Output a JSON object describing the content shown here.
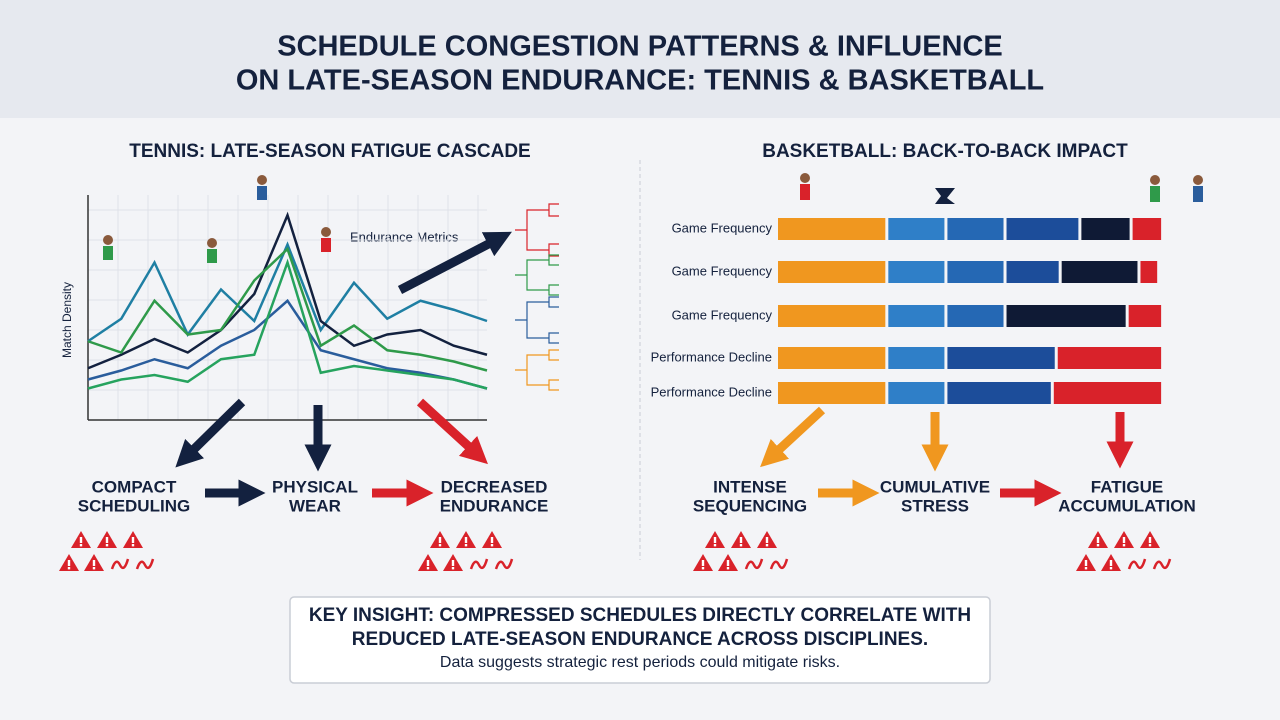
{
  "title": [
    "SCHEDULE CONGESTION PATTERNS & INFLUENCE",
    "ON LATE-SEASON ENDURANCE: TENNIS & BASKETBALL"
  ],
  "chart_data": [
    {
      "type": "line",
      "title": "TENNIS: LATE-SEASON FATIGUE CASCADE",
      "y_label": "Match Density",
      "annotation": "Endurance Metrics",
      "x": [
        0,
        1,
        2,
        3,
        4,
        5,
        6,
        7,
        8,
        9,
        10,
        11,
        12
      ],
      "xlim": [
        0,
        12
      ],
      "ylim": [
        0,
        10
      ],
      "series": [
        {
          "color": "#1f7fa3",
          "values": [
            3.5,
            4.5,
            7.0,
            3.8,
            5.8,
            4.4,
            7.8,
            4.0,
            6.1,
            4.5,
            5.3,
            4.9,
            4.4
          ]
        },
        {
          "color": "#13213f",
          "values": [
            2.3,
            2.9,
            3.6,
            3.0,
            4.0,
            5.6,
            9.1,
            4.4,
            3.3,
            3.8,
            4.0,
            3.3,
            2.9
          ]
        },
        {
          "color": "#2f9a4a",
          "values": [
            3.5,
            3.0,
            5.3,
            3.8,
            4.0,
            6.2,
            7.6,
            3.3,
            4.2,
            3.1,
            2.9,
            2.6,
            2.2
          ]
        },
        {
          "color": "#2a5d9c",
          "values": [
            1.8,
            2.2,
            2.7,
            2.3,
            3.3,
            4.0,
            5.3,
            3.1,
            2.7,
            2.3,
            2.1,
            1.8,
            1.4
          ]
        },
        {
          "color": "#26a35e",
          "values": [
            1.4,
            1.8,
            2.0,
            1.7,
            2.7,
            2.9,
            7.0,
            2.1,
            2.4,
            2.2,
            2.0,
            1.8,
            1.4
          ]
        }
      ]
    },
    {
      "type": "stacked_barh",
      "title": "BASKETBALL: BACK-TO-BACK IMPACT",
      "categories": [
        "Game Frequency",
        "Game Frequency",
        "Game Frequency",
        "Performance Decline",
        "Performance Decline"
      ],
      "xlim": [
        0,
        100
      ],
      "series": [
        {
          "color": "#f0971f",
          "values": [
            28,
            28,
            28,
            28,
            28
          ]
        },
        {
          "color": "#2f7fc8",
          "values": [
            15,
            15,
            15,
            15,
            15
          ]
        },
        {
          "color": "#2568b4",
          "values": [
            15,
            15,
            15,
            0,
            0
          ]
        },
        {
          "color": "#1c4d9a",
          "values": [
            19,
            14,
            0,
            28,
            27
          ]
        },
        {
          "color": "#0f1a35",
          "values": [
            13,
            20,
            31,
            0,
            0
          ]
        },
        {
          "color": "#d9222a",
          "values": [
            8,
            5,
            9,
            27,
            28
          ]
        }
      ]
    }
  ],
  "tennis_flow": [
    [
      "COMPACT",
      "SCHEDULING"
    ],
    [
      "PHYSICAL",
      "WEAR"
    ],
    [
      "DECREASED",
      "ENDURANCE"
    ]
  ],
  "basketball_flow": [
    [
      "INTENSE",
      "SEQUENCING"
    ],
    [
      "CUMULATIVE",
      "STRESS"
    ],
    [
      "FATIGUE",
      "ACCUMULATION"
    ]
  ],
  "insight": {
    "headline": [
      "KEY INSIGHT: COMPRESSED SCHEDULES DIRECTLY CORRELATE WITH",
      "REDUCED LATE-SEASON ENDURANCE ACROSS DISCIPLINES."
    ],
    "note": "Data suggests strategic rest periods could mitigate risks."
  }
}
